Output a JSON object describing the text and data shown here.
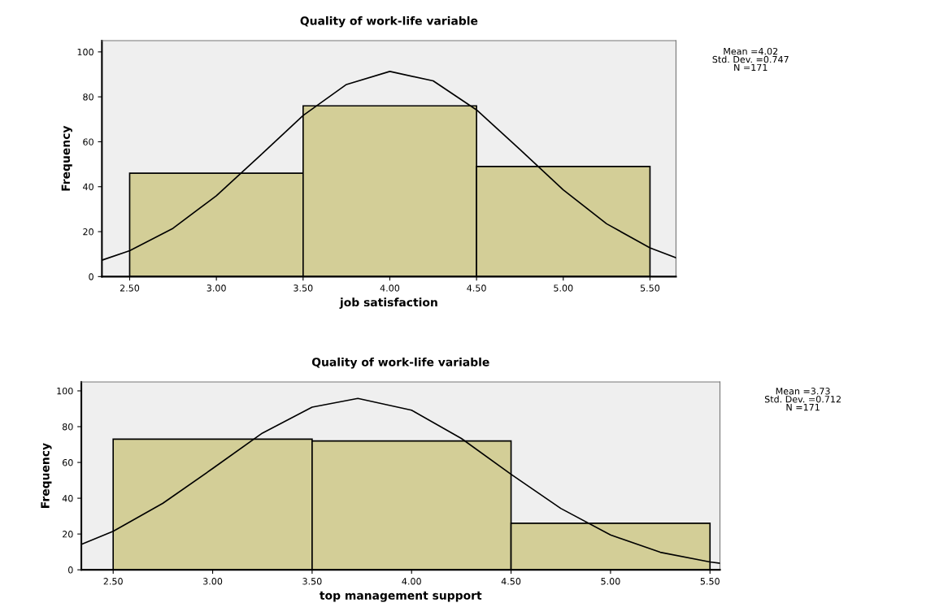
{
  "chart_data": [
    {
      "type": "histogram",
      "title": "Quality of work-life variable",
      "xlabel": "job satisfaction",
      "ylabel": "Frequency",
      "bins": [
        2.5,
        3.5,
        4.5,
        5.5
      ],
      "values": [
        46,
        76,
        49
      ],
      "color": "#d3ce97",
      "series": [
        {
          "type": "line",
          "color": "#000000",
          "x": [
            2.34,
            2.5,
            2.75,
            3.0,
            3.25,
            3.5,
            3.75,
            4.0,
            4.25,
            4.5,
            4.75,
            5.0,
            5.25,
            5.5,
            5.65
          ],
          "values": [
            7.3,
            11.5,
            21.5,
            36.0,
            53.7,
            71.7,
            85.5,
            91.3,
            87.1,
            74.2,
            56.6,
            38.6,
            23.5,
            12.8,
            8.4
          ]
        }
      ],
      "xlim": [
        2.34,
        5.65
      ],
      "ylim": [
        0,
        105
      ],
      "xticks": [
        {
          "value": 2.5,
          "label": "2.50"
        },
        {
          "value": 3.0,
          "label": "3.00"
        },
        {
          "value": 3.5,
          "label": "3.50"
        },
        {
          "value": 4.0,
          "label": "4.00"
        },
        {
          "value": 4.5,
          "label": "4.50"
        },
        {
          "value": 5.0,
          "label": "5.00"
        },
        {
          "value": 5.5,
          "label": "5.50"
        }
      ],
      "yticks": [
        0,
        20,
        40,
        60,
        80,
        100
      ],
      "grid": false,
      "annotations": [
        "Mean =4.02\nStd. Dev. =0.747\nN =171"
      ]
    },
    {
      "type": "histogram",
      "title": "Quality of work-life variable",
      "xlabel": "top management support",
      "ylabel": "Frequency",
      "bins": [
        2.5,
        3.5,
        4.5,
        5.5
      ],
      "values": [
        73,
        72,
        26
      ],
      "color": "#d3ce97",
      "series": [
        {
          "type": "line",
          "color": "#000000",
          "x": [
            2.34,
            2.5,
            2.75,
            3.0,
            3.25,
            3.5,
            3.73,
            4.0,
            4.25,
            4.5,
            4.75,
            5.0,
            5.25,
            5.5,
            5.55
          ],
          "values": [
            14.2,
            21.5,
            37.2,
            56.6,
            76.4,
            90.9,
            95.8,
            89.2,
            73.4,
            53.4,
            34.3,
            19.5,
            9.8,
            4.4,
            3.7
          ]
        }
      ],
      "xlim": [
        2.34,
        5.55
      ],
      "ylim": [
        0,
        105
      ],
      "xticks": [
        {
          "value": 2.5,
          "label": "2.50"
        },
        {
          "value": 3.0,
          "label": "3.00"
        },
        {
          "value": 3.5,
          "label": "3.50"
        },
        {
          "value": 4.0,
          "label": "4.00"
        },
        {
          "value": 4.5,
          "label": "4.50"
        },
        {
          "value": 5.0,
          "label": "5.00"
        },
        {
          "value": 5.5,
          "label": "5.50"
        }
      ],
      "yticks": [
        0,
        20,
        40,
        60,
        80,
        100
      ],
      "grid": false,
      "annotations": [
        "Mean =3.73\nStd. Dev. =0.712\nN =171"
      ]
    }
  ]
}
